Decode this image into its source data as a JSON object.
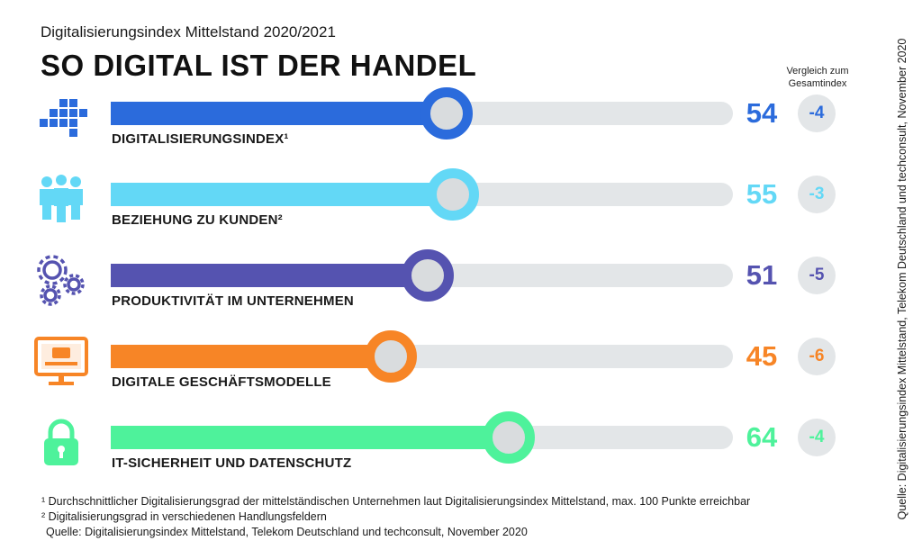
{
  "header": {
    "subtitle": "Digitalisierungsindex Mittelstand 2020/2021",
    "title": "SO DIGITAL IST DER HANDEL",
    "comparison_label": "Vergleich zum Gesamtindex"
  },
  "source_vertical": "Quelle: Digitalisierungsindex Mittelstand, Telekom Deutschland und techconsult, November 2020",
  "footnotes": {
    "note1": "¹ Durchschnittlicher Digitalisierungsgrad der mittelständischen Unternehmen laut Digitalisierungsindex Mittelstand, max. 100 Punkte erreichbar",
    "note2": "² Digitalisierungsgrad in verschiedenen Handlungsfeldern",
    "source": "Quelle: Digitalisierungsindex Mittelstand, Telekom Deutschland und techconsult, November 2020"
  },
  "chart_data": {
    "type": "bar",
    "orientation": "horizontal",
    "xlim": [
      0,
      100
    ],
    "categories": [
      "DIGITALISIERUNGSINDEX¹",
      "BEZIEHUNG ZU KUNDEN²",
      "PRODUKTIVITÄT IM UNTERNEHMEN",
      "DIGITALE GESCHÄFTSMODELLE",
      "IT-SICHERHEIT UND DATENSCHUTZ"
    ],
    "values": [
      54,
      55,
      51,
      45,
      64
    ],
    "value_labels": [
      "54",
      "55",
      "51",
      "45",
      "64"
    ],
    "comparison_to_overall_index": [
      "-4",
      "-3",
      "-5",
      "-6",
      "-4"
    ],
    "colors": [
      "#2b6bdc",
      "#63d8f6",
      "#5553b0",
      "#f78526",
      "#4ef29b"
    ],
    "icons": [
      "squares-icon",
      "people-icon",
      "gears-icon",
      "monitor-icon",
      "padlock-icon"
    ]
  }
}
